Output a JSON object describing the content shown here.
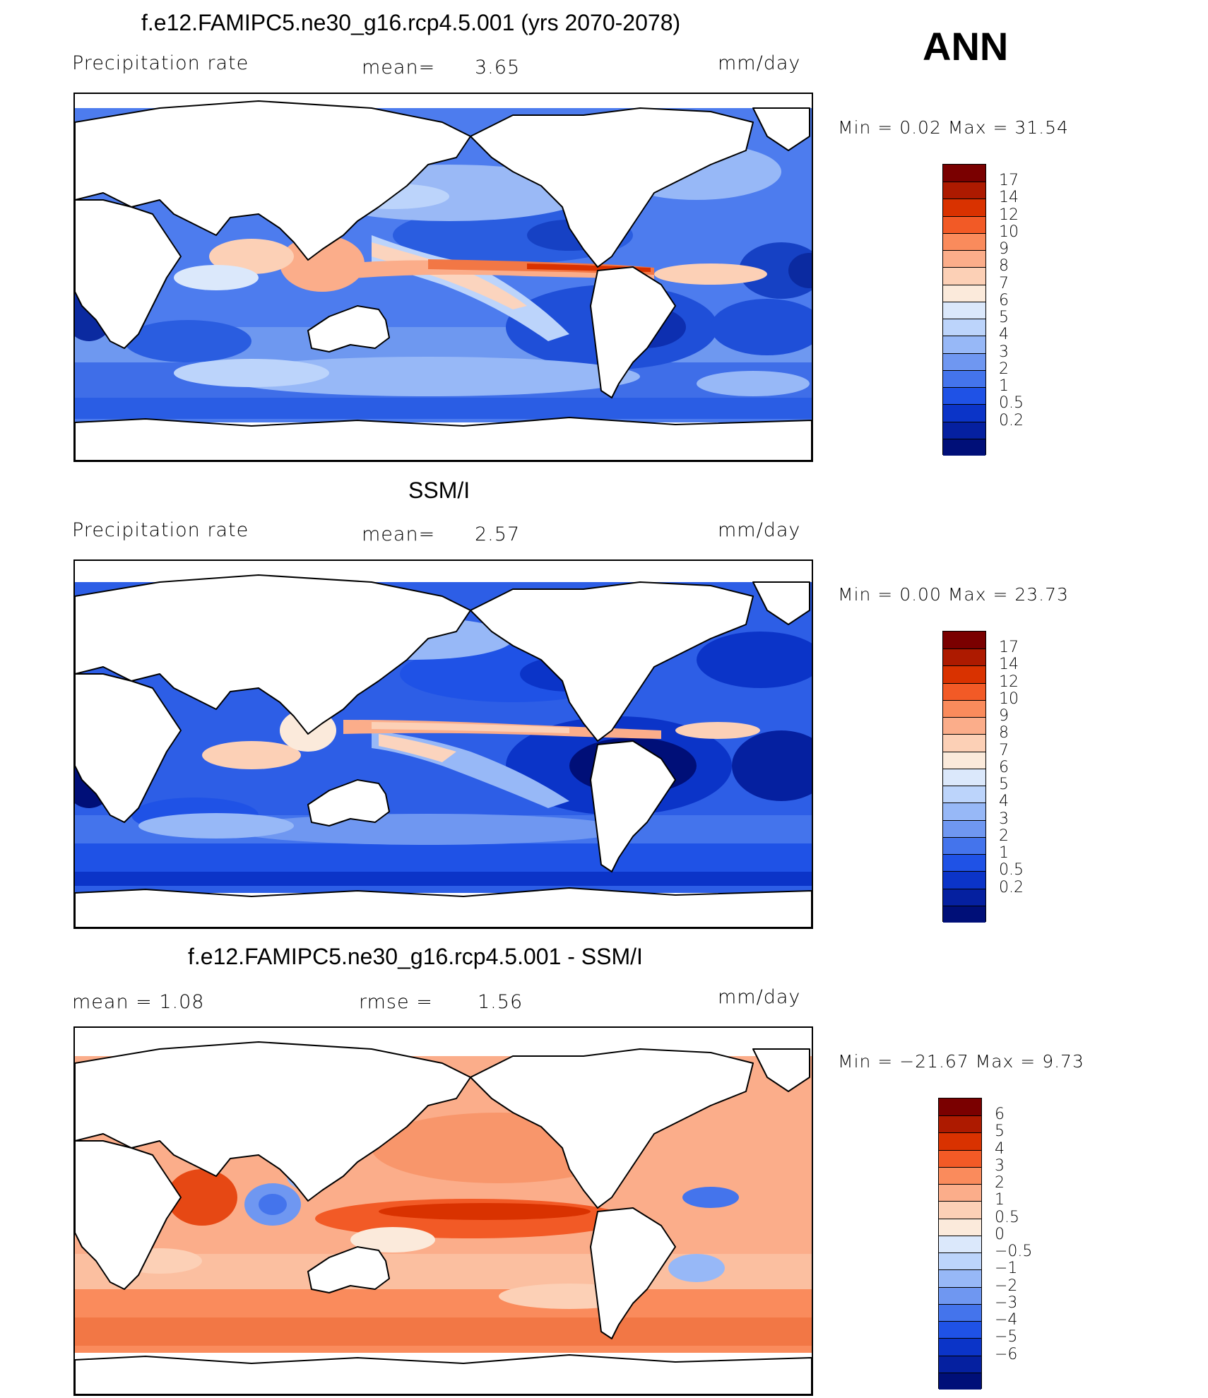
{
  "corner_label": "ANN",
  "panels": [
    {
      "title": "f.e12.FAMIPC5.ne30_g16.rcp4.5.001 (yrs 2070-2078)",
      "left_label": "Precipitation  rate",
      "mid_label": "mean=",
      "mid_value": "3.65",
      "units": "mm/day",
      "min_max": "Min  =     0.02  Max  =    31.54",
      "colorbar": {
        "labels": [
          "17",
          "14",
          "12",
          "10",
          "9",
          "8",
          "7",
          "6",
          "5",
          "4",
          "3",
          "2",
          "1",
          "0.5",
          "0.2"
        ],
        "colors": [
          "#7a0000",
          "#ad1a00",
          "#d93200",
          "#f25a26",
          "#fa8b5c",
          "#fbad8a",
          "#fcd0b6",
          "#fbeadb",
          "#dbe8fb",
          "#bcd4fb",
          "#97b8f7",
          "#6f97f1",
          "#4474ec",
          "#1f52e6",
          "#0b34c8",
          "#0520a0",
          "#000f78"
        ]
      }
    },
    {
      "title": "SSM/I",
      "left_label": "Precipitation  rate",
      "mid_label": "mean=",
      "mid_value": "2.57",
      "units": "mm/day",
      "min_max": "Min  =     0.00  Max  =    23.73",
      "colorbar": {
        "labels": [
          "17",
          "14",
          "12",
          "10",
          "9",
          "8",
          "7",
          "6",
          "5",
          "4",
          "3",
          "2",
          "1",
          "0.5",
          "0.2"
        ],
        "colors": [
          "#7a0000",
          "#ad1a00",
          "#d93200",
          "#f25a26",
          "#fa8b5c",
          "#fbad8a",
          "#fcd0b6",
          "#fbeadb",
          "#dbe8fb",
          "#bcd4fb",
          "#97b8f7",
          "#6f97f1",
          "#4474ec",
          "#1f52e6",
          "#0b34c8",
          "#0520a0",
          "#000f78"
        ]
      }
    },
    {
      "title": "f.e12.FAMIPC5.ne30_g16.rcp4.5.001 - SSM/I",
      "left_label": "mean  =      1.08",
      "mid_label": "rmse  =",
      "mid_value": "1.56",
      "units": "mm/day",
      "min_max": "Min  = −21.67  Max  =      9.73",
      "colorbar": {
        "labels": [
          "6",
          "5",
          "4",
          "3",
          "2",
          "1",
          "0.5",
          "0",
          "−0.5",
          "−1",
          "−2",
          "−3",
          "−4",
          "−5",
          "−6"
        ],
        "colors": [
          "#7a0000",
          "#ad1a00",
          "#d93200",
          "#f25a26",
          "#fa8b5c",
          "#fbad8a",
          "#fcd0b6",
          "#fbeadb",
          "#dbe8fb",
          "#bcd4fb",
          "#97b8f7",
          "#6f97f1",
          "#4474ec",
          "#1f52e6",
          "#0b34c8",
          "#0520a0",
          "#000f78"
        ]
      }
    }
  ]
}
